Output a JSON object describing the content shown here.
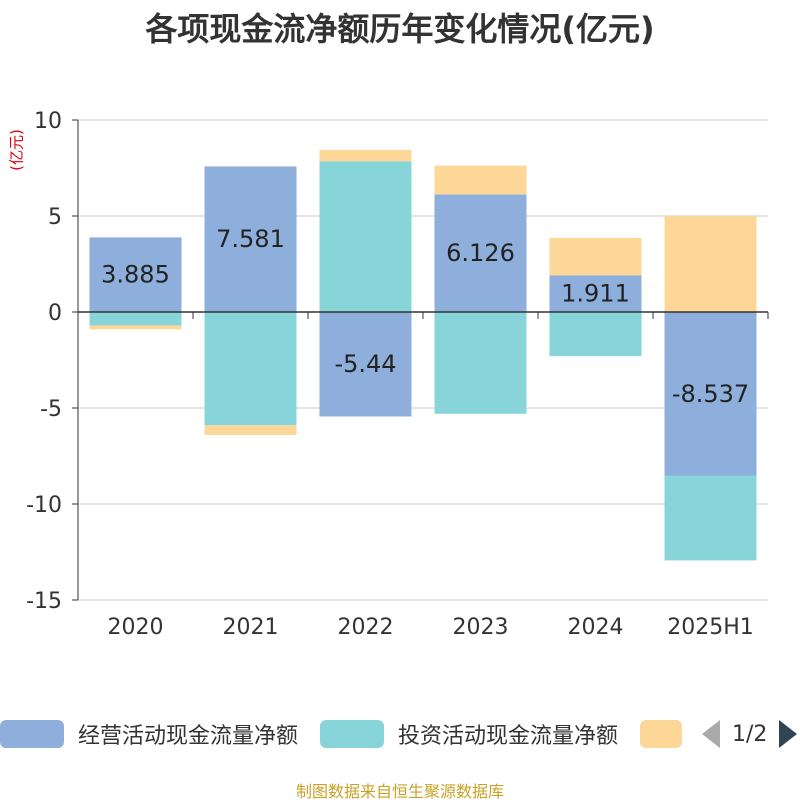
{
  "chart_data": {
    "type": "bar",
    "stacked": true,
    "title": "各项现金流净额历年变化情况(亿元)",
    "ylabel": "(亿元)",
    "ylim": [
      -15,
      10
    ],
    "yticks": [
      10,
      5,
      0,
      -5,
      -10,
      -15
    ],
    "grid": true,
    "categories": [
      "2020",
      "2021",
      "2022",
      "2023",
      "2024",
      "2025H1"
    ],
    "series": [
      {
        "name": "经营活动现金流量净额",
        "color": "#8eaedb",
        "values": [
          3.885,
          7.581,
          -5.44,
          6.126,
          1.911,
          -8.537
        ],
        "labels": [
          "3.885",
          "7.581",
          "-5.44",
          "6.126",
          "1.911",
          "-8.537"
        ]
      },
      {
        "name": "投资活动现金流量净额",
        "color": "#87d5d8",
        "values": [
          -0.7,
          -5.9,
          7.85,
          -5.3,
          -2.3,
          -4.4
        ]
      },
      {
        "name": "",
        "color": "#fdd797",
        "values": [
          -0.2,
          -0.5,
          0.6,
          1.5,
          1.95,
          5.0
        ]
      }
    ]
  },
  "legend": {
    "item1": "经营活动现金流量净额",
    "item2": "投资活动现金流量净额",
    "page": "1/2"
  },
  "source": "制图数据来自恒生聚源数据库"
}
